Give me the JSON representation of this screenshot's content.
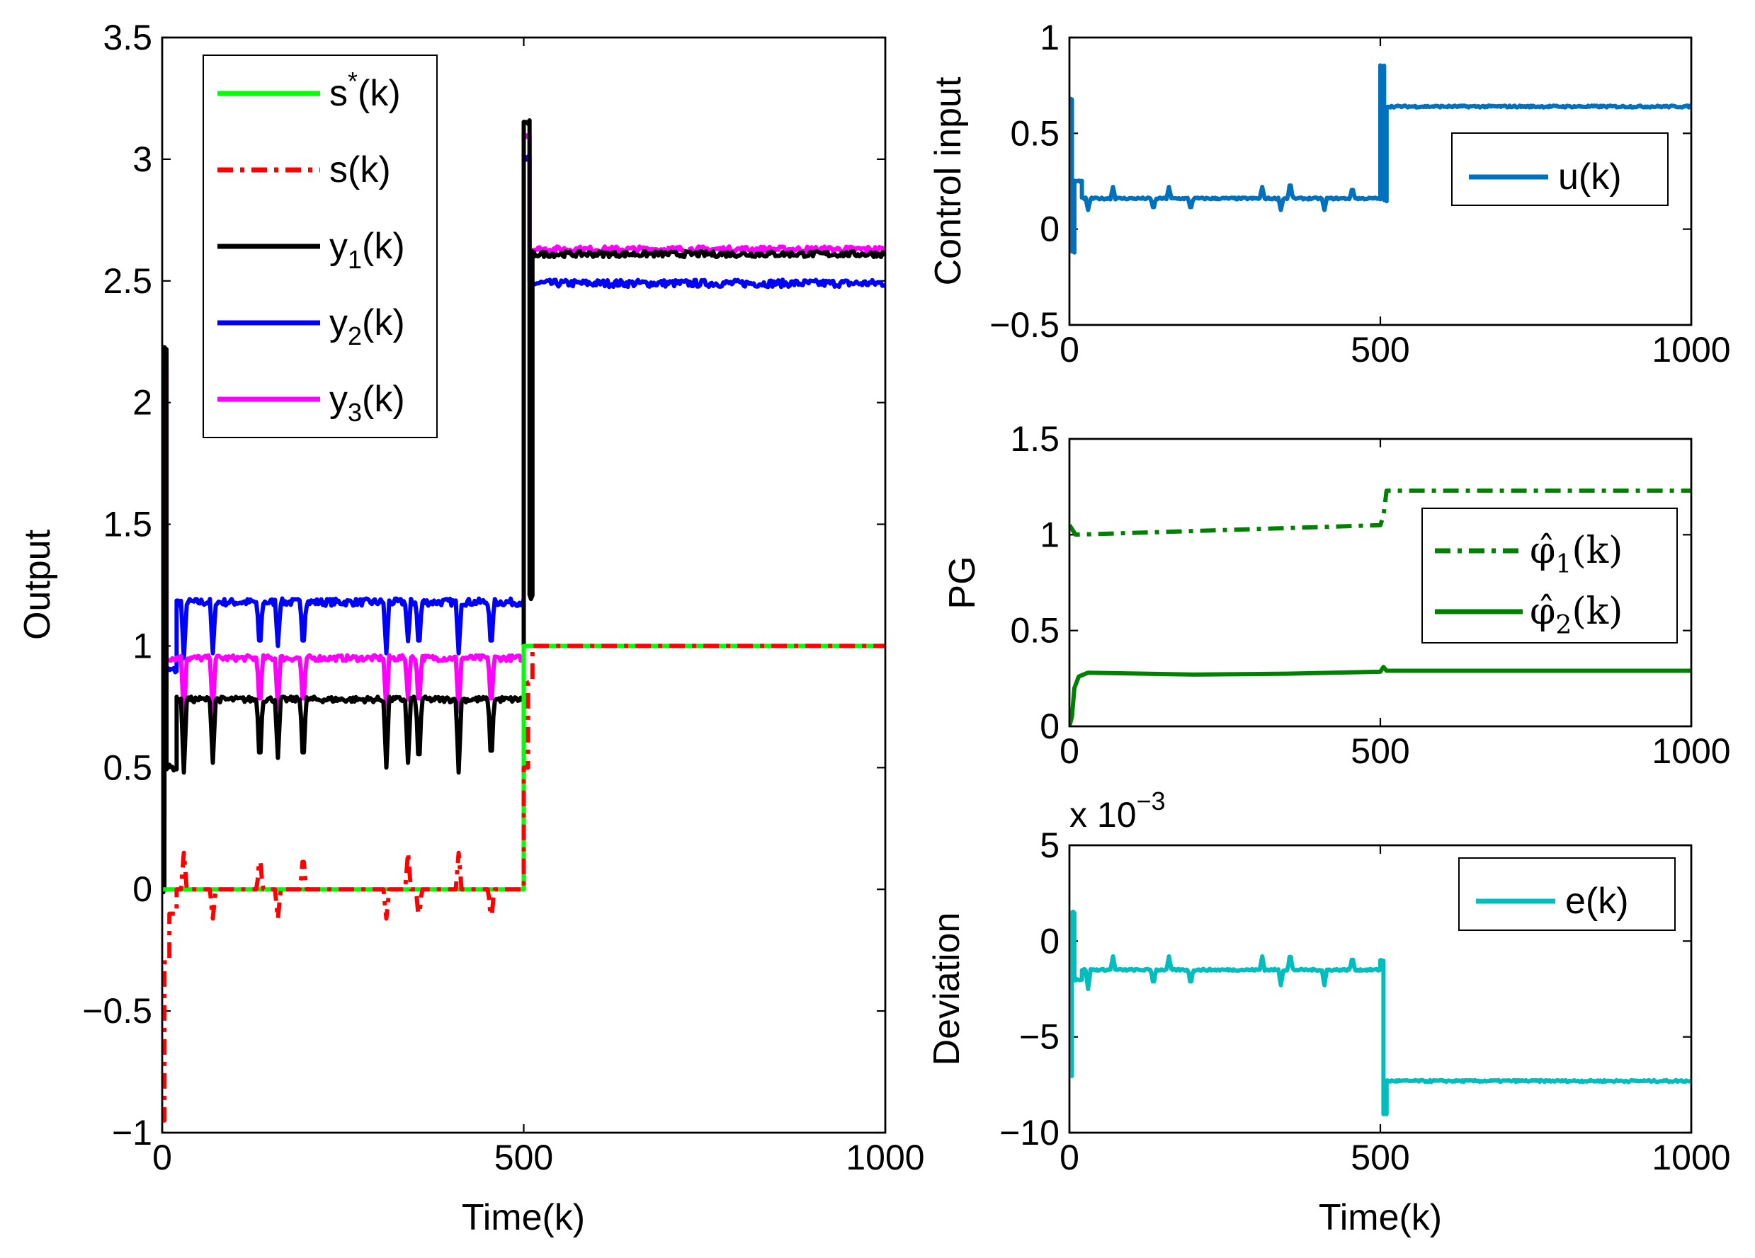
{
  "chart_data": [
    {
      "id": "output",
      "type": "line",
      "title": "",
      "xlabel": "Time(k)",
      "ylabel": "Output",
      "xlim": [
        0,
        1000
      ],
      "ylim": [
        -1,
        3.5
      ],
      "xticks": [
        0,
        500,
        1000
      ],
      "xtick_labels": [
        "0",
        "500",
        "1000"
      ],
      "yticks": [
        -1,
        -0.5,
        0,
        0.5,
        1,
        1.5,
        2,
        2.5,
        3,
        3.5
      ],
      "ytick_labels": [
        "−1",
        "−0.5",
        "0",
        "0.5",
        "1",
        "1.5",
        "2",
        "2.5",
        "3",
        "3.5"
      ],
      "legend_position": "top-left",
      "series": [
        {
          "key": "y2",
          "name": "y2(k)",
          "legend": {
            "base": "y",
            "sub": "2",
            "tail": "(k)"
          },
          "color": "#0000ff",
          "style": "solid",
          "segments": [
            {
              "from": 0,
              "to": 3,
              "value": 0.3
            },
            {
              "from": 3,
              "to": 5,
              "value": 2.0
            },
            {
              "from": 5,
              "to": 20,
              "value": 0.9
            },
            {
              "from": 20,
              "to": 500,
              "value": 1.18
            },
            {
              "from": 500,
              "to": 508,
              "value": 3.0
            },
            {
              "from": 508,
              "to": 1000,
              "value": 2.49
            }
          ],
          "dips": [
            [
              30,
              0.95
            ],
            [
              70,
              0.97
            ],
            [
              135,
              0.97
            ],
            [
              160,
              1.0
            ],
            [
              195,
              0.97
            ],
            [
              310,
              0.97
            ],
            [
              340,
              1.02
            ],
            [
              355,
              0.97
            ],
            [
              410,
              0.97
            ],
            [
              455,
              0.97
            ]
          ],
          "noise": 0.015
        },
        {
          "key": "y3",
          "name": "y3(k)",
          "legend": {
            "base": "y",
            "sub": "3",
            "tail": "(k)"
          },
          "color": "#ff00ff",
          "style": "solid",
          "segments": [
            {
              "from": 0,
              "to": 3,
              "value": 0.2
            },
            {
              "from": 3,
              "to": 6,
              "value": 2.15
            },
            {
              "from": 6,
              "to": 20,
              "value": 0.95
            },
            {
              "from": 20,
              "to": 500,
              "value": 0.95
            },
            {
              "from": 500,
              "to": 508,
              "value": 3.1
            },
            {
              "from": 508,
              "to": 1000,
              "value": 2.63
            }
          ],
          "dips": [
            [
              30,
              0.7
            ],
            [
              70,
              0.73
            ],
            [
              135,
              0.73
            ],
            [
              160,
              0.75
            ],
            [
              195,
              0.73
            ],
            [
              310,
              0.73
            ],
            [
              340,
              0.78
            ],
            [
              355,
              0.73
            ],
            [
              410,
              0.73
            ],
            [
              455,
              0.73
            ]
          ],
          "noise": 0.012
        },
        {
          "key": "y1",
          "name": "y1(k)",
          "legend": {
            "base": "y",
            "sub": "1",
            "tail": "(k)"
          },
          "color": "#000000",
          "style": "solid",
          "segments": [
            {
              "from": 0,
              "to": 3,
              "value": 0.0
            },
            {
              "from": 3,
              "to": 6,
              "value": 2.23
            },
            {
              "from": 6,
              "to": 20,
              "value": 0.5
            },
            {
              "from": 20,
              "to": 500,
              "value": 0.78
            },
            {
              "from": 500,
              "to": 508,
              "value": 3.15
            },
            {
              "from": 508,
              "to": 512,
              "value": 1.2
            },
            {
              "from": 512,
              "to": 1000,
              "value": 2.61
            }
          ],
          "dips": [
            [
              30,
              0.48
            ],
            [
              70,
              0.52
            ],
            [
              135,
              0.49
            ],
            [
              160,
              0.54
            ],
            [
              195,
              0.49
            ],
            [
              310,
              0.5
            ],
            [
              340,
              0.52
            ],
            [
              355,
              0.48
            ],
            [
              410,
              0.48
            ],
            [
              455,
              0.5
            ]
          ],
          "noise": 0.012
        },
        {
          "key": "s_star",
          "name": "s*(k)",
          "legend": {
            "base": "s",
            "sup": "*",
            "tail": "(k)"
          },
          "color": "#00ff00",
          "style": "solid",
          "segments": [
            {
              "from": 0,
              "to": 500,
              "value": 0
            },
            {
              "from": 500,
              "to": 1000,
              "value": 1
            }
          ]
        },
        {
          "key": "s",
          "name": "s(k)",
          "legend": {
            "base": "s",
            "tail": "(k)"
          },
          "color": "#ff0000",
          "style": "dashdot",
          "segments": [
            {
              "from": 0,
              "to": 3,
              "value": -0.95
            },
            {
              "from": 3,
              "to": 10,
              "value": -0.3
            },
            {
              "from": 10,
              "to": 20,
              "value": -0.1
            },
            {
              "from": 20,
              "to": 500,
              "value": 0.0
            },
            {
              "from": 500,
              "to": 506,
              "value": 0.5
            },
            {
              "from": 506,
              "to": 512,
              "value": 0.85
            },
            {
              "from": 512,
              "to": 1000,
              "value": 1.0
            }
          ],
          "dips": [
            [
              30,
              0.15
            ],
            [
              70,
              -0.12
            ],
            [
              135,
              0.15
            ],
            [
              160,
              -0.12
            ],
            [
              195,
              0.15
            ],
            [
              310,
              -0.12
            ],
            [
              340,
              0.15
            ],
            [
              355,
              -0.13
            ],
            [
              410,
              0.15
            ],
            [
              455,
              -0.14
            ]
          ],
          "noise": 0.0
        }
      ]
    },
    {
      "id": "control",
      "type": "line",
      "title": "",
      "xlabel": "",
      "ylabel": "Control input",
      "xlim": [
        0,
        1000
      ],
      "ylim": [
        -0.5,
        1
      ],
      "xticks": [
        0,
        500,
        1000
      ],
      "xtick_labels": [
        "0",
        "500",
        "1000"
      ],
      "yticks": [
        -0.5,
        0,
        0.5,
        1
      ],
      "ytick_labels": [
        "−0.5",
        "0",
        "0.5",
        "1"
      ],
      "legend_position": "top-right",
      "series": [
        {
          "key": "u",
          "name": "u(k)",
          "legend": {
            "base": "u",
            "tail": "(k)"
          },
          "color": "#0072bd",
          "style": "solid",
          "segments": [
            {
              "from": 0,
              "to": 4,
              "value": 0.68
            },
            {
              "from": 4,
              "to": 8,
              "value": -0.12
            },
            {
              "from": 8,
              "to": 20,
              "value": 0.25
            },
            {
              "from": 20,
              "to": 500,
              "value": 0.16
            },
            {
              "from": 500,
              "to": 506,
              "value": 0.85
            },
            {
              "from": 506,
              "to": 510,
              "value": 0.15
            },
            {
              "from": 510,
              "to": 1000,
              "value": 0.64
            }
          ],
          "dips": [
            [
              30,
              0.1
            ],
            [
              70,
              0.22
            ],
            [
              135,
              0.1
            ],
            [
              160,
              0.22
            ],
            [
              195,
              0.1
            ],
            [
              310,
              0.22
            ],
            [
              340,
              0.1
            ],
            [
              355,
              0.25
            ],
            [
              410,
              0.1
            ],
            [
              455,
              0.22
            ]
          ],
          "noise": 0.005
        }
      ]
    },
    {
      "id": "pg",
      "type": "line",
      "title": "",
      "xlabel": "",
      "ylabel": "PG",
      "xlim": [
        0,
        1000
      ],
      "ylim": [
        0,
        1.5
      ],
      "xticks": [
        0,
        500,
        1000
      ],
      "xtick_labels": [
        "0",
        "500",
        "1000"
      ],
      "yticks": [
        0,
        0.5,
        1,
        1.5
      ],
      "ytick_labels": [
        "0",
        "0.5",
        "1",
        "1.5"
      ],
      "legend_position": "right",
      "series": [
        {
          "key": "phi1",
          "name": "φ̂1(k)",
          "legend": {
            "base": "φ̂",
            "sub": "1",
            "tail": "(k)",
            "serif": true
          },
          "color": "#008000",
          "style": "dashdot",
          "points": [
            [
              0,
              1.05
            ],
            [
              10,
              1.0
            ],
            [
              500,
              1.05
            ],
            [
              505,
              1.1
            ],
            [
              510,
              1.23
            ],
            [
              1000,
              1.23
            ]
          ]
        },
        {
          "key": "phi2",
          "name": "φ̂2(k)",
          "legend": {
            "base": "φ̂",
            "sub": "2",
            "tail": "(k)",
            "serif": true
          },
          "color": "#008000",
          "style": "solid",
          "points": [
            [
              0,
              0.0
            ],
            [
              4,
              0.05
            ],
            [
              8,
              0.2
            ],
            [
              15,
              0.26
            ],
            [
              30,
              0.28
            ],
            [
              200,
              0.27
            ],
            [
              350,
              0.275
            ],
            [
              500,
              0.285
            ],
            [
              505,
              0.31
            ],
            [
              510,
              0.29
            ],
            [
              1000,
              0.29
            ]
          ]
        }
      ]
    },
    {
      "id": "deviation",
      "type": "line",
      "title": "",
      "xlabel": "Time(k)",
      "ylabel": "Deviation",
      "xlim": [
        0,
        1000
      ],
      "ylim": [
        -10,
        5
      ],
      "scale_label": "x 10",
      "scale_exponent": "−3",
      "xticks": [
        0,
        500,
        1000
      ],
      "xtick_labels": [
        "0",
        "500",
        "1000"
      ],
      "yticks": [
        -10,
        -5,
        0,
        5
      ],
      "ytick_labels": [
        "−10",
        "−5",
        "0",
        "5"
      ],
      "legend_position": "top-right",
      "series": [
        {
          "key": "e",
          "name": "e(k)",
          "legend": {
            "base": "e",
            "tail": "(k)"
          },
          "color": "#00bebe",
          "style": "solid",
          "segments": [
            {
              "from": 0,
              "to": 4,
              "value": -7.0
            },
            {
              "from": 4,
              "to": 8,
              "value": 1.5
            },
            {
              "from": 8,
              "to": 20,
              "value": -2.0
            },
            {
              "from": 20,
              "to": 500,
              "value": -1.5
            },
            {
              "from": 500,
              "to": 505,
              "value": -1.0
            },
            {
              "from": 505,
              "to": 510,
              "value": -9.0
            },
            {
              "from": 510,
              "to": 1000,
              "value": -7.3
            }
          ],
          "dips": [
            [
              30,
              -2.5
            ],
            [
              70,
              -0.8
            ],
            [
              135,
              -2.3
            ],
            [
              160,
              -0.8
            ],
            [
              195,
              -2.3
            ],
            [
              310,
              -0.8
            ],
            [
              340,
              -2.3
            ],
            [
              355,
              -0.6
            ],
            [
              410,
              -2.3
            ],
            [
              455,
              -0.8
            ]
          ],
          "noise": 0.05
        }
      ]
    }
  ]
}
